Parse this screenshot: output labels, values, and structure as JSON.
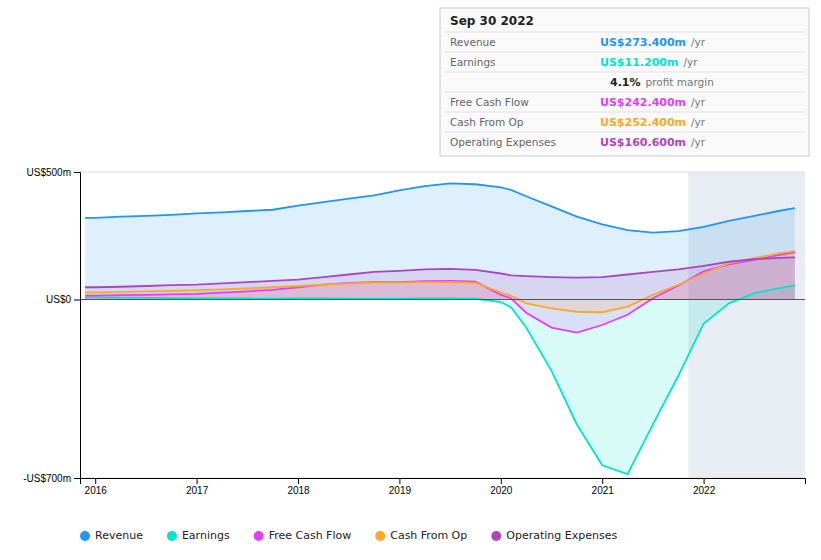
{
  "chart_data": {
    "type": "area",
    "title": "Sep 30 2022",
    "x": [
      2015.9,
      2016.0,
      2016.25,
      2016.5,
      2016.75,
      2017.0,
      2017.25,
      2017.5,
      2017.75,
      2018.0,
      2018.25,
      2018.5,
      2018.75,
      2019.0,
      2019.25,
      2019.5,
      2019.75,
      2020.0,
      2020.1,
      2020.25,
      2020.5,
      2020.75,
      2021.0,
      2021.25,
      2021.5,
      2021.75,
      2022.0,
      2022.25,
      2022.5,
      2022.75,
      2022.9
    ],
    "series": [
      {
        "name": "Revenue",
        "color": "#2196f3",
        "values": [
          320,
          320,
          325,
          328,
          332,
          338,
          342,
          347,
          352,
          368,
          382,
          396,
          408,
          428,
          445,
          455,
          452,
          440,
          430,
          405,
          365,
          325,
          295,
          272,
          262,
          268,
          285,
          308,
          328,
          348,
          358
        ]
      },
      {
        "name": "Earnings",
        "color": "#00e5cc",
        "values": [
          8,
          8,
          7,
          6,
          5,
          4,
          4,
          4,
          3,
          4,
          4,
          3,
          3,
          3,
          4,
          4,
          3,
          -10,
          -30,
          -110,
          -280,
          -490,
          -650,
          -685,
          -490,
          -300,
          -95,
          -15,
          25,
          45,
          55
        ]
      },
      {
        "name": "Free Cash Flow",
        "color": "#e040fb",
        "values": [
          15,
          15,
          17,
          18,
          20,
          22,
          27,
          32,
          38,
          48,
          58,
          65,
          68,
          68,
          72,
          73,
          70,
          18,
          5,
          -52,
          -110,
          -130,
          -100,
          -60,
          5,
          55,
          110,
          138,
          155,
          175,
          185
        ]
      },
      {
        "name": "Cash From Op",
        "color": "#ffa726",
        "values": [
          28,
          28,
          30,
          32,
          34,
          37,
          40,
          44,
          48,
          53,
          58,
          63,
          66,
          66,
          68,
          68,
          65,
          28,
          15,
          -15,
          -35,
          -48,
          -50,
          -28,
          18,
          58,
          102,
          142,
          162,
          182,
          190
        ]
      },
      {
        "name": "Operating Expenses",
        "color": "#ab47bc",
        "values": [
          48,
          48,
          50,
          53,
          56,
          58,
          63,
          68,
          73,
          78,
          88,
          98,
          108,
          112,
          118,
          120,
          116,
          102,
          95,
          92,
          88,
          86,
          88,
          98,
          108,
          118,
          132,
          148,
          158,
          163,
          165
        ]
      }
    ],
    "xlim": [
      2015.85,
      2023.0
    ],
    "xticks": [
      2016,
      2017,
      2018,
      2019,
      2020,
      2021,
      2022
    ],
    "ylim": [
      -700,
      500
    ],
    "yticks": [
      {
        "value": 500,
        "label": "US$500m"
      },
      {
        "value": 0,
        "label": "US$0"
      },
      {
        "value": -700,
        "label": "-US$700m"
      }
    ],
    "grid": true,
    "legend": "bottom",
    "annotations": [
      {
        "type": "span",
        "x": [
          2021.85,
          2023.0
        ]
      },
      {
        "type": "table_row",
        "label": "Revenue",
        "value": "US$273.400m",
        "suffix": "/yr",
        "color": "#2196f3"
      },
      {
        "type": "table_row",
        "label": "Earnings",
        "value": "US$11.200m",
        "suffix": "/yr",
        "color": "#00e5cc"
      },
      {
        "type": "table_row",
        "value": "4.1%",
        "suffix": "profit margin"
      },
      {
        "type": "table_row",
        "label": "Free Cash Flow",
        "value": "US$242.400m",
        "suffix": "/yr",
        "color": "#e040fb"
      },
      {
        "type": "table_row",
        "label": "Cash From Op",
        "value": "US$252.400m",
        "suffix": "/yr",
        "color": "#ffa726"
      },
      {
        "type": "table_row",
        "label": "Operating Expenses",
        "value": "US$160.600m",
        "suffix": "/yr",
        "color": "#ab47bc"
      }
    ]
  }
}
